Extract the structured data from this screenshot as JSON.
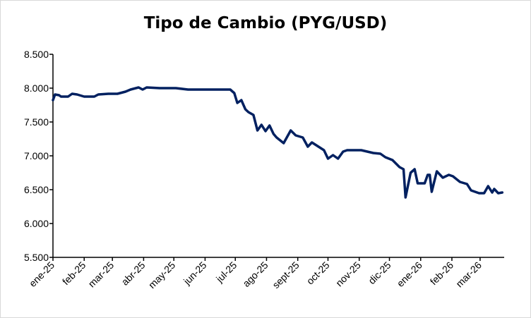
{
  "chart_data": {
    "type": "line",
    "title": "Tipo de Cambio (PYG/USD)",
    "xlabel": "",
    "ylabel": "",
    "ylim": [
      5500,
      8500
    ],
    "yticks": [
      5500,
      6000,
      6500,
      7000,
      7500,
      8000,
      8500
    ],
    "ytick_labels": [
      "5.500",
      "6.000",
      "6.500",
      "7.000",
      "7.500",
      "8.000",
      "8.500"
    ],
    "x_unit": "days since 1 Jan 2025",
    "xlim": [
      0,
      447
    ],
    "xticks": [
      0,
      31,
      59,
      90,
      120,
      151,
      181,
      212,
      243,
      273,
      304,
      334,
      365,
      396,
      424
    ],
    "xtick_labels": [
      "ene-25",
      "feb-25",
      "mar-25",
      "abr-25",
      "may-25",
      "jun-25",
      "jul-25",
      "ago-25",
      "sept-25",
      "oct-25",
      "nov-25",
      "dic-25",
      "ene-26",
      "feb-26",
      "mar-26"
    ],
    "grid": false,
    "line_color": "#002060",
    "series": [
      {
        "name": "PYG/USD",
        "x": [
          0,
          2,
          6,
          8,
          15,
          19,
          24,
          31,
          41,
          45,
          55,
          64,
          72,
          77,
          85,
          89,
          93,
          106,
          122,
          134,
          152,
          166,
          176,
          180,
          183,
          187,
          191,
          194,
          199,
          203,
          207,
          211,
          215,
          219,
          222,
          229,
          236,
          241,
          248,
          253,
          257,
          269,
          273,
          278,
          283,
          288,
          292,
          306,
          318,
          325,
          330,
          337,
          344,
          348,
          350,
          355,
          359,
          362,
          369,
          372,
          374,
          376,
          381,
          387,
          393,
          397,
          404,
          411,
          415,
          423,
          428,
          432,
          436,
          438,
          442,
          446
        ],
        "values": [
          7823,
          7906,
          7896,
          7875,
          7875,
          7917,
          7906,
          7875,
          7875,
          7906,
          7917,
          7917,
          7948,
          7979,
          8010,
          7979,
          8010,
          8000,
          8000,
          7979,
          7979,
          7979,
          7979,
          7927,
          7781,
          7823,
          7688,
          7646,
          7604,
          7375,
          7458,
          7365,
          7448,
          7323,
          7271,
          7188,
          7375,
          7302,
          7271,
          7135,
          7198,
          7083,
          6958,
          7010,
          6958,
          7063,
          7083,
          7083,
          7042,
          7031,
          6979,
          6938,
          6833,
          6802,
          6385,
          6750,
          6802,
          6594,
          6594,
          6719,
          6719,
          6469,
          6771,
          6677,
          6719,
          6698,
          6615,
          6583,
          6490,
          6448,
          6448,
          6552,
          6458,
          6510,
          6448,
          6458
        ]
      }
    ]
  }
}
